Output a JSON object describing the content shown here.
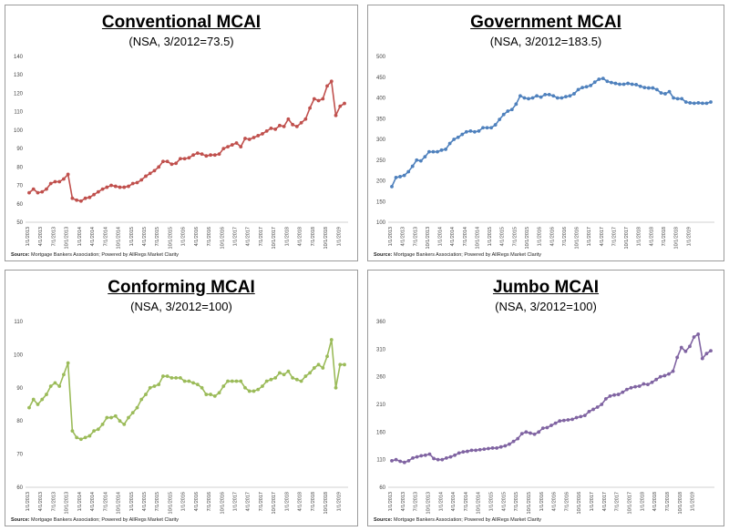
{
  "source_label": "Source:",
  "source_text": "Mortgage Bankers Association; Powered by AllRegs Market Clarity",
  "panels": [
    {
      "title": "Conventional MCAI",
      "subtitle": "(NSA, 3/2012=73.5)"
    },
    {
      "title": "Government MCAI",
      "subtitle": "(NSA, 3/2012=183.5)"
    },
    {
      "title": "Conforming MCAI",
      "subtitle": "(NSA, 3/2012=100)"
    },
    {
      "title": "Jumbo MCAI",
      "subtitle": "(NSA, 3/2012=100)"
    }
  ],
  "chart_data": [
    {
      "type": "line",
      "title": "Conventional MCAI",
      "subtitle": "(NSA, 3/2012=73.5)",
      "color": "#c0504d",
      "ylim": [
        50,
        140
      ],
      "yticks": [
        50,
        60,
        70,
        80,
        90,
        100,
        110,
        120,
        130,
        140
      ],
      "xticks": [
        "1/1/2013",
        "4/1/2013",
        "7/1/2013",
        "10/1/2013",
        "1/1/2014",
        "4/1/2014",
        "7/1/2014",
        "10/1/2014",
        "1/1/2015",
        "4/1/2015",
        "7/1/2015",
        "10/1/2015",
        "1/1/2016",
        "4/1/2016",
        "7/1/2016",
        "10/1/2016",
        "1/1/2017",
        "4/1/2017",
        "7/1/2017",
        "10/1/2017",
        "1/1/2018",
        "4/1/2018",
        "7/1/2018",
        "10/1/2018",
        "1/1/2019"
      ],
      "x_start": "2013-01",
      "series": [
        {
          "values": [
            66,
            68,
            66,
            66.5,
            68,
            71,
            72,
            72,
            73.5,
            76,
            63,
            62,
            61.5,
            63,
            63.5,
            65,
            66.5,
            68,
            69,
            70,
            69.5,
            69,
            69,
            69.5,
            71,
            71.5,
            73,
            75,
            76.5,
            78,
            80,
            83,
            83,
            81.5,
            82,
            84.5,
            84.5,
            85,
            86.5,
            87.5,
            87,
            86,
            86.5,
            86.5,
            87,
            90,
            91,
            92,
            93,
            91,
            95.5,
            95,
            96,
            97,
            98,
            99.5,
            101,
            100.5,
            102.5,
            102,
            106,
            103,
            102,
            104,
            106,
            112,
            117,
            116,
            117,
            124,
            126.5,
            108,
            113,
            114.5
          ]
        }
      ]
    },
    {
      "type": "line",
      "title": "Government MCAI",
      "subtitle": "(NSA, 3/2012=183.5)",
      "color": "#4f81bd",
      "ylim": [
        100,
        500
      ],
      "yticks": [
        100,
        150,
        200,
        250,
        300,
        350,
        400,
        450,
        500
      ],
      "xticks": [
        "1/1/2013",
        "4/1/2013",
        "7/1/2013",
        "10/1/2013",
        "1/1/2014",
        "4/1/2014",
        "7/1/2014",
        "10/1/2014",
        "1/1/2015",
        "4/1/2015",
        "7/1/2015",
        "10/1/2015",
        "1/1/2016",
        "4/1/2016",
        "7/1/2016",
        "10/1/2016",
        "1/1/2017",
        "4/1/2017",
        "7/1/2017",
        "10/1/2017",
        "1/1/2018",
        "4/1/2018",
        "7/1/2018",
        "10/1/2018",
        "1/1/2019"
      ],
      "x_start": "2013-01",
      "series": [
        {
          "values": [
            186,
            208,
            210,
            213,
            222,
            235,
            250,
            248,
            258,
            270,
            270,
            270,
            274,
            276,
            290,
            300,
            305,
            312,
            318,
            320,
            318,
            320,
            328,
            328,
            328,
            335,
            348,
            360,
            368,
            372,
            385,
            405,
            400,
            398,
            400,
            405,
            402,
            408,
            408,
            405,
            400,
            400,
            403,
            405,
            410,
            420,
            425,
            427,
            430,
            438,
            445,
            447,
            440,
            437,
            435,
            433,
            433,
            435,
            433,
            432,
            428,
            425,
            424,
            424,
            420,
            412,
            410,
            415,
            400,
            398,
            398,
            390,
            388,
            387,
            388,
            387,
            387,
            390
          ]
        }
      ]
    },
    {
      "type": "line",
      "title": "Conforming MCAI",
      "subtitle": "(NSA, 3/2012=100)",
      "color": "#9bbb59",
      "ylim": [
        60,
        110
      ],
      "yticks": [
        60,
        70,
        80,
        90,
        100,
        110
      ],
      "xticks": [
        "1/1/2013",
        "4/1/2013",
        "7/1/2013",
        "10/1/2013",
        "1/1/2014",
        "4/1/2014",
        "7/1/2014",
        "10/1/2014",
        "1/1/2015",
        "4/1/2015",
        "7/1/2015",
        "10/1/2015",
        "1/1/2016",
        "4/1/2016",
        "7/1/2016",
        "10/1/2016",
        "1/1/2017",
        "4/1/2017",
        "7/1/2017",
        "10/1/2017",
        "1/1/2018",
        "4/1/2018",
        "7/1/2018",
        "10/1/2018",
        "1/1/2019"
      ],
      "x_start": "2013-01",
      "series": [
        {
          "values": [
            84,
            86.5,
            85,
            86.5,
            88,
            90.5,
            91.5,
            90.5,
            94,
            97.5,
            77,
            75,
            74.5,
            75,
            75.5,
            77,
            77.5,
            79,
            81,
            81,
            81.5,
            80,
            79,
            81,
            82.5,
            84,
            86.5,
            88,
            90,
            90.5,
            91,
            93.5,
            93.5,
            93,
            93,
            93,
            92,
            92,
            91.5,
            91,
            90,
            88,
            88,
            87.5,
            88.5,
            90.5,
            92,
            92,
            92,
            92,
            90,
            89,
            89,
            89.5,
            90.5,
            92,
            92.5,
            93,
            94.5,
            94,
            95,
            93,
            92.5,
            92,
            93.5,
            94.5,
            96,
            97,
            96,
            99.5,
            104.5,
            90,
            97,
            97
          ]
        }
      ]
    },
    {
      "type": "line",
      "title": "Jumbo MCAI",
      "subtitle": "(NSA, 3/2012=100)",
      "color": "#8064a2",
      "ylim": [
        60,
        360
      ],
      "yticks": [
        60,
        110,
        160,
        210,
        260,
        310,
        360
      ],
      "xticks": [
        "1/1/2013",
        "4/1/2013",
        "7/1/2013",
        "10/1/2013",
        "1/1/2014",
        "4/1/2014",
        "7/1/2014",
        "10/1/2014",
        "1/1/2015",
        "4/1/2015",
        "7/1/2015",
        "10/1/2015",
        "1/1/2016",
        "4/1/2016",
        "7/1/2016",
        "10/1/2016",
        "1/1/2017",
        "4/1/2017",
        "7/1/2017",
        "10/1/2017",
        "1/1/2018",
        "4/1/2018",
        "7/1/2018",
        "10/1/2018",
        "1/1/2019"
      ],
      "x_start": "2013-01",
      "series": [
        {
          "values": [
            108,
            110,
            107,
            105,
            108,
            113,
            115,
            117,
            118,
            120,
            112,
            110,
            110,
            113,
            115,
            118,
            122,
            124,
            125,
            127,
            127,
            128,
            129,
            130,
            131,
            131,
            133,
            135,
            138,
            143,
            148,
            157,
            160,
            158,
            156,
            160,
            167,
            168,
            172,
            176,
            180,
            181,
            182,
            183,
            186,
            188,
            190,
            197,
            201,
            205,
            210,
            220,
            225,
            227,
            228,
            232,
            237,
            240,
            242,
            243,
            247,
            246,
            250,
            255,
            260,
            262,
            265,
            270,
            295,
            313,
            306,
            315,
            332,
            337,
            293,
            302,
            307
          ]
        }
      ]
    }
  ]
}
